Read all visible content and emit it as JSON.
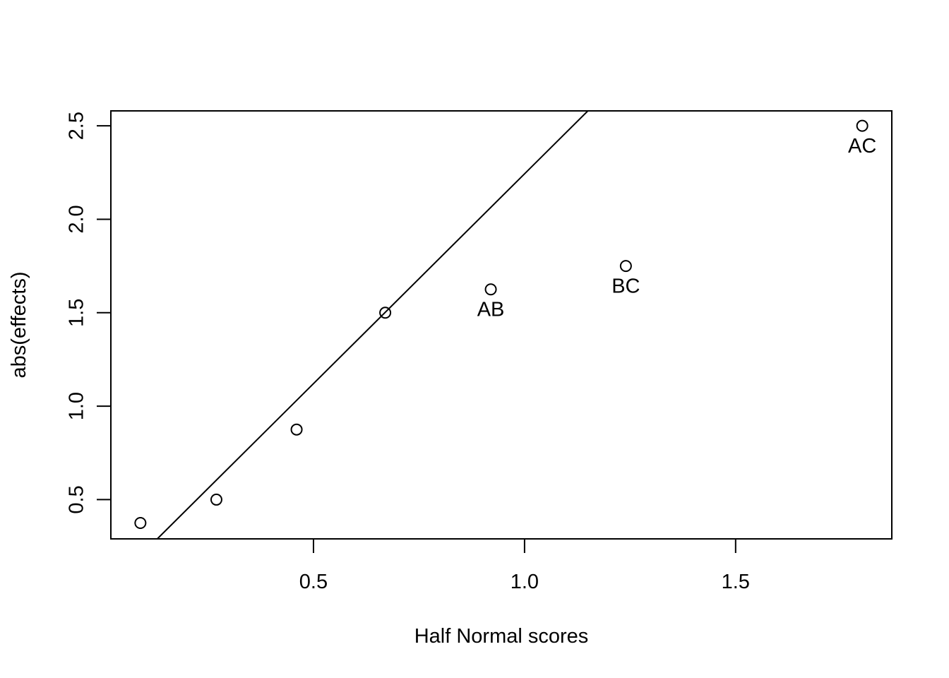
{
  "chart_data": {
    "type": "scatter",
    "title": "",
    "xlabel": "Half Normal scores",
    "ylabel": "abs(effects)",
    "xlim": [
      0.02,
      1.87
    ],
    "ylim": [
      0.29,
      2.58
    ],
    "x_ticks": [
      0.5,
      1.0,
      1.5
    ],
    "x_tick_labels": [
      "0.5",
      "1.0",
      "1.5"
    ],
    "y_ticks": [
      0.5,
      1.0,
      1.5,
      2.0,
      2.5
    ],
    "y_tick_labels": [
      "0.5",
      "1.0",
      "1.5",
      "2.0",
      "2.5"
    ],
    "grid": false,
    "points": [
      {
        "x": 0.09,
        "y": 0.375,
        "label": ""
      },
      {
        "x": 0.27,
        "y": 0.5,
        "label": ""
      },
      {
        "x": 0.46,
        "y": 0.875,
        "label": ""
      },
      {
        "x": 0.67,
        "y": 1.5,
        "label": ""
      },
      {
        "x": 0.92,
        "y": 1.625,
        "label": "AB"
      },
      {
        "x": 1.24,
        "y": 1.75,
        "label": "BC"
      },
      {
        "x": 1.8,
        "y": 2.5,
        "label": "AC"
      }
    ],
    "reference_line": {
      "x": [
        0.13,
        1.15
      ],
      "y": [
        0.29,
        2.58
      ]
    }
  }
}
